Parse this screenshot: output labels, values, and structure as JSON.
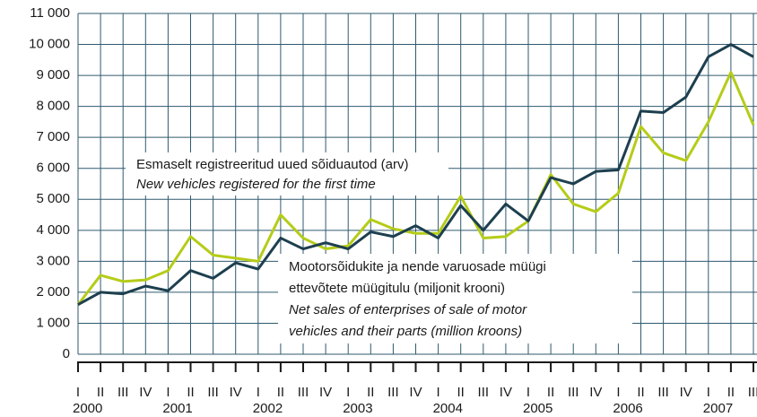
{
  "chart_data": {
    "type": "line",
    "categories": [
      "I",
      "II",
      "III",
      "IV",
      "I",
      "II",
      "III",
      "IV",
      "I",
      "II",
      "III",
      "IV",
      "I",
      "II",
      "III",
      "IV",
      "I",
      "II",
      "III",
      "IV",
      "I",
      "II",
      "III",
      "IV",
      "I",
      "II",
      "III",
      "IV",
      "I",
      "II",
      "III"
    ],
    "years": [
      "2000",
      "2001",
      "2002",
      "2003",
      "2004",
      "2005",
      "2006",
      "2007"
    ],
    "series": [
      {
        "name": "Mootorsõidukite ja nende varuosade müügi ettevõtete müügitulu (miljonit krooni)",
        "color": "#1d3f4f",
        "values": [
          1600,
          2000,
          1950,
          2200,
          2050,
          2700,
          2450,
          2950,
          2750,
          3750,
          3400,
          3600,
          3400,
          3950,
          3800,
          4150,
          3750,
          4800,
          4000,
          4850,
          4300,
          5700,
          5500,
          5900,
          5950,
          7850,
          7800,
          8300,
          9600,
          10000,
          9600
        ]
      },
      {
        "name": "Esmaselt registreeritud uued sõiduautod (arv)",
        "color": "#b5cc18",
        "values": [
          1600,
          2550,
          2350,
          2400,
          2700,
          3800,
          3200,
          3100,
          3000,
          4500,
          3750,
          3400,
          3500,
          4350,
          4050,
          3900,
          3900,
          5100,
          3750,
          3800,
          4300,
          5800,
          4850,
          4600,
          5200,
          7350,
          6500,
          6250,
          7500,
          9100,
          7400
        ]
      }
    ],
    "annotations": [
      {
        "lines": [
          "Esmaselt registreeritud uued sõiduautod (arv)",
          "New vehicles registered for the first time"
        ]
      },
      {
        "lines": [
          "Mootorsõidukite ja nende varuosade müügi",
          "ettevõtete müügitulu (miljonit krooni)",
          "Net sales of enterprises of sale of motor",
          "vehicles and their parts (million kroons)"
        ]
      }
    ],
    "ylim": [
      0,
      11000
    ],
    "yticks": [
      0,
      {
        "value": 1000,
        "label": "1 000"
      },
      {
        "value": 2000,
        "label": "2 000"
      },
      {
        "value": 3000,
        "label": "3 000"
      },
      {
        "value": 4000,
        "label": "4 000"
      },
      {
        "value": 5000,
        "label": "5 000"
      },
      {
        "value": 6000,
        "label": "6 000"
      },
      {
        "value": 7000,
        "label": "7 000"
      },
      {
        "value": 8000,
        "label": "8 000"
      },
      {
        "value": 9000,
        "label": "9 000"
      },
      {
        "value": 10000,
        "label": "10 000"
      },
      {
        "value": 11000,
        "label": "11 000"
      }
    ],
    "grid": true
  }
}
